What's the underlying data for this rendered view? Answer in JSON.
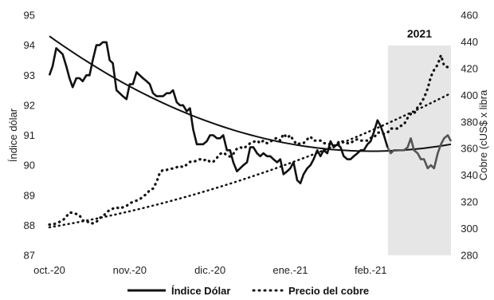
{
  "chart_data": {
    "type": "line",
    "x_ticks": [
      "oct.-20",
      "nov.-20",
      "dic.-20",
      "ene.-21",
      "feb.-21"
    ],
    "x_domain": [
      0,
      1
    ],
    "y_left": {
      "label": "Índice dólar",
      "lim": [
        87,
        95
      ],
      "ticks": [
        87,
        88,
        89,
        90,
        91,
        92,
        93,
        94,
        95
      ]
    },
    "y_right": {
      "label": "Cobre (cUS$ x libra",
      "lim": [
        280,
        460
      ],
      "ticks": [
        280,
        300,
        320,
        340,
        360,
        380,
        400,
        420,
        440,
        460
      ]
    },
    "shaded_region": {
      "label": "2021",
      "x_start": 0.843,
      "x_end": 1.0,
      "color": "#e6e6e6"
    },
    "series": [
      {
        "name": "Índice Dólar",
        "axis": "left",
        "style": "solid",
        "color": "#111111",
        "color_2021": "#555555",
        "x": [
          0.0,
          0.008,
          0.017,
          0.025,
          0.033,
          0.042,
          0.05,
          0.058,
          0.067,
          0.075,
          0.083,
          0.092,
          0.1,
          0.108,
          0.117,
          0.125,
          0.133,
          0.142,
          0.15,
          0.158,
          0.167,
          0.175,
          0.183,
          0.192,
          0.2,
          0.208,
          0.217,
          0.225,
          0.233,
          0.242,
          0.25,
          0.258,
          0.267,
          0.275,
          0.283,
          0.292,
          0.3,
          0.308,
          0.317,
          0.325,
          0.333,
          0.342,
          0.35,
          0.358,
          0.367,
          0.375,
          0.383,
          0.392,
          0.4,
          0.408,
          0.417,
          0.425,
          0.433,
          0.442,
          0.45,
          0.458,
          0.467,
          0.475,
          0.483,
          0.492,
          0.5,
          0.508,
          0.517,
          0.525,
          0.533,
          0.542,
          0.55,
          0.558,
          0.567,
          0.575,
          0.583,
          0.592,
          0.6,
          0.608,
          0.617,
          0.625,
          0.633,
          0.642,
          0.65,
          0.658,
          0.667,
          0.675,
          0.683,
          0.692,
          0.7,
          0.708,
          0.717,
          0.725,
          0.733,
          0.742,
          0.75,
          0.758,
          0.767,
          0.775,
          0.783,
          0.792,
          0.8,
          0.808,
          0.817,
          0.825,
          0.833,
          0.842,
          0.85,
          0.858,
          0.867,
          0.875,
          0.883,
          0.892,
          0.9,
          0.908,
          0.917,
          0.925,
          0.933,
          0.942,
          0.95,
          0.958,
          0.967,
          0.975,
          0.983,
          0.992,
          1.0
        ],
        "values": [
          93.0,
          93.3,
          93.9,
          93.8,
          93.7,
          93.3,
          92.9,
          92.6,
          92.9,
          92.9,
          92.8,
          93.0,
          93.0,
          93.5,
          94.0,
          94.0,
          94.1,
          94.1,
          93.5,
          93.4,
          92.5,
          92.4,
          92.3,
          92.2,
          92.7,
          92.7,
          93.1,
          93.0,
          92.9,
          92.8,
          92.7,
          92.4,
          92.3,
          92.3,
          92.3,
          92.4,
          92.4,
          92.5,
          92.1,
          92.0,
          92.0,
          91.8,
          91.9,
          91.2,
          90.7,
          90.7,
          90.7,
          90.8,
          91.0,
          91.0,
          90.9,
          90.9,
          91.0,
          90.5,
          90.5,
          90.1,
          89.8,
          89.9,
          90.0,
          90.1,
          90.6,
          90.6,
          90.4,
          90.3,
          90.4,
          90.3,
          90.3,
          90.2,
          90.1,
          90.2,
          89.7,
          89.8,
          89.9,
          90.1,
          89.5,
          89.4,
          89.7,
          89.9,
          90.0,
          90.2,
          90.5,
          90.3,
          90.5,
          90.4,
          90.8,
          90.6,
          90.7,
          90.6,
          90.3,
          90.2,
          90.2,
          90.3,
          90.4,
          90.5,
          90.5,
          90.7,
          90.8,
          91.1,
          91.5,
          91.3,
          91.0,
          90.6,
          90.4,
          90.5,
          90.5,
          90.5,
          90.5,
          90.6,
          90.9,
          90.5,
          90.4,
          90.2,
          90.2,
          89.9,
          90.0,
          89.9,
          90.4,
          90.7,
          90.9,
          91.0,
          90.8
        ],
        "trend": {
          "style": "solid",
          "poly2": [
            94.3,
            -9.55,
            5.95
          ]
        }
      },
      {
        "name": "Precio del cobre",
        "axis": "right",
        "style": "dotted",
        "color": "#111111",
        "x": [
          0.0,
          0.008,
          0.017,
          0.025,
          0.033,
          0.042,
          0.05,
          0.058,
          0.067,
          0.075,
          0.083,
          0.092,
          0.1,
          0.108,
          0.117,
          0.125,
          0.133,
          0.142,
          0.15,
          0.158,
          0.167,
          0.175,
          0.183,
          0.192,
          0.2,
          0.208,
          0.217,
          0.225,
          0.233,
          0.242,
          0.25,
          0.258,
          0.267,
          0.275,
          0.283,
          0.292,
          0.3,
          0.308,
          0.317,
          0.325,
          0.333,
          0.342,
          0.35,
          0.358,
          0.367,
          0.375,
          0.383,
          0.392,
          0.4,
          0.408,
          0.417,
          0.425,
          0.433,
          0.442,
          0.45,
          0.458,
          0.467,
          0.475,
          0.483,
          0.492,
          0.5,
          0.508,
          0.517,
          0.525,
          0.533,
          0.542,
          0.55,
          0.558,
          0.567,
          0.575,
          0.583,
          0.592,
          0.6,
          0.608,
          0.617,
          0.625,
          0.633,
          0.642,
          0.65,
          0.658,
          0.667,
          0.675,
          0.683,
          0.692,
          0.7,
          0.708,
          0.717,
          0.725,
          0.733,
          0.742,
          0.75,
          0.758,
          0.767,
          0.775,
          0.783,
          0.792,
          0.8,
          0.808,
          0.817,
          0.825,
          0.833,
          0.842,
          0.85,
          0.858,
          0.867,
          0.875,
          0.883,
          0.892,
          0.9,
          0.908,
          0.917,
          0.925,
          0.933,
          0.942,
          0.95,
          0.958,
          0.967,
          0.975,
          0.983,
          0.992,
          1.0
        ],
        "values": [
          303,
          303,
          304,
          305,
          306,
          309,
          312,
          312,
          311,
          310,
          306,
          306,
          304,
          304,
          305,
          308,
          309,
          312,
          314,
          315,
          316,
          315,
          316,
          317,
          319,
          320,
          321,
          322,
          324,
          326,
          329,
          330,
          335,
          342,
          344,
          344,
          345,
          345,
          346,
          347,
          346,
          348,
          350,
          350,
          351,
          352,
          351,
          352,
          350,
          350,
          353,
          356,
          357,
          355,
          354,
          356,
          360,
          361,
          360,
          362,
          364,
          365,
          366,
          364,
          366,
          364,
          365,
          367,
          368,
          366,
          371,
          368,
          370,
          366,
          363,
          364,
          364,
          367,
          369,
          366,
          366,
          366,
          364,
          364,
          363,
          362,
          364,
          366,
          365,
          364,
          364,
          366,
          367,
          366,
          366,
          366,
          368,
          368,
          372,
          372,
          371,
          372,
          375,
          375,
          375,
          377,
          378,
          383,
          386,
          386,
          391,
          394,
          398,
          405,
          414,
          419,
          423,
          430,
          422,
          421,
          419
        ],
        "trend": {
          "style": "dotted",
          "poly2": [
            301.0,
            50.0,
            50.5
          ]
        }
      }
    ],
    "legend": {
      "position": "bottom-center",
      "entries": [
        "Índice Dólar",
        "Precio del cobre"
      ]
    }
  }
}
